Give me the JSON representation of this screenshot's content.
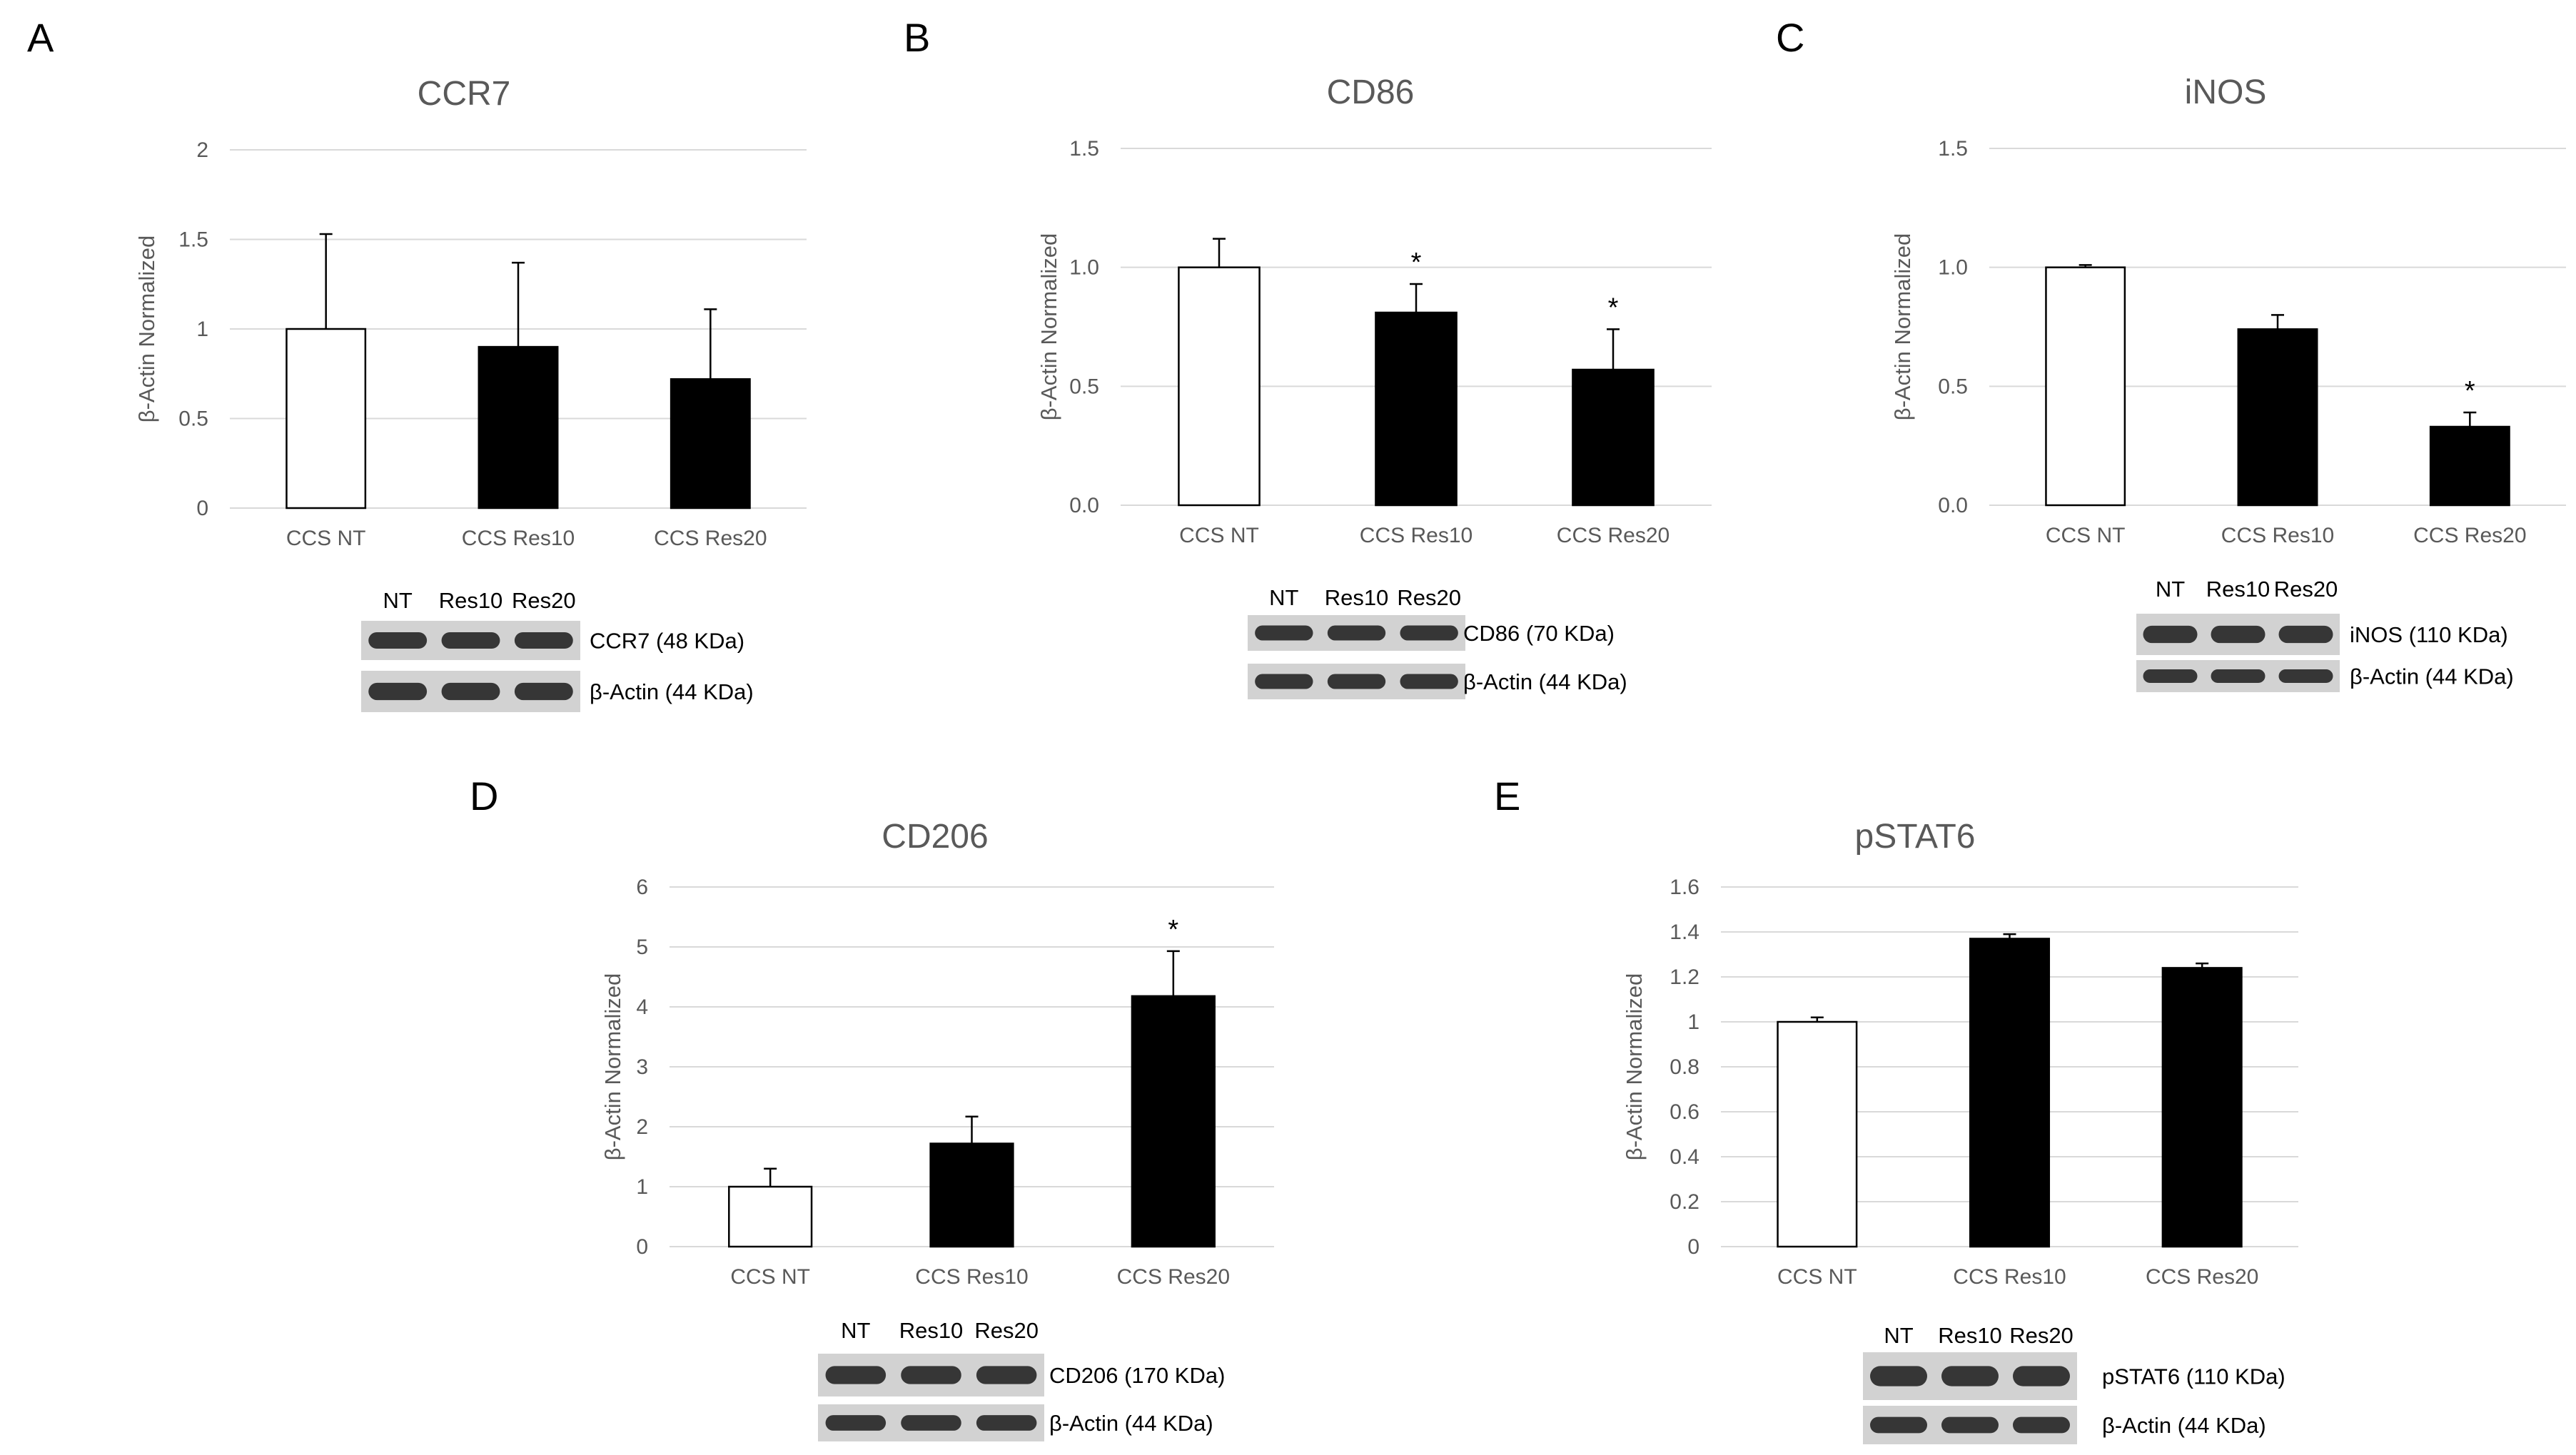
{
  "figure": {
    "panels": [
      "A",
      "B",
      "C",
      "D",
      "E"
    ]
  },
  "colors": {
    "open_bar": "#ffffff",
    "filled_bar": "#000000",
    "grid": "#d9d9d9",
    "text": "#595959"
  },
  "chart_data": [
    {
      "panel": "A",
      "type": "bar",
      "title": "CCR7",
      "ylabel": "β-Actin Normalized",
      "xlabel": "",
      "categories": [
        "CCS NT",
        "CCS Res10",
        "CCS Res20"
      ],
      "values": [
        1.0,
        0.9,
        0.72
      ],
      "errors": [
        0.53,
        0.47,
        0.39
      ],
      "significant": [
        false,
        false,
        false
      ],
      "ylim": [
        0,
        2
      ],
      "yticks": [
        "0",
        "0.5",
        "1",
        "1.5",
        "2"
      ],
      "grid": true,
      "blot": {
        "lanes": [
          "NT",
          "Res10",
          "Res20"
        ],
        "labels": [
          "CCR7 (48 KDa)",
          "β-Actin (44 KDa)"
        ]
      }
    },
    {
      "panel": "B",
      "type": "bar",
      "title": "CD86",
      "ylabel": "β-Actin Normalized",
      "xlabel": "",
      "categories": [
        "CCS NT",
        "CCS Res10",
        "CCS Res20"
      ],
      "values": [
        1.0,
        0.81,
        0.57
      ],
      "errors": [
        0.12,
        0.12,
        0.17
      ],
      "significant": [
        false,
        true,
        true
      ],
      "ylim": [
        0,
        1.5
      ],
      "yticks": [
        "0.0",
        "0.5",
        "1.0",
        "1.5"
      ],
      "grid": true,
      "blot": {
        "lanes": [
          "NT",
          "Res10",
          "Res20"
        ],
        "labels": [
          "CD86 (70 KDa)",
          "β-Actin (44 KDa)"
        ]
      }
    },
    {
      "panel": "C",
      "type": "bar",
      "title": "iNOS",
      "ylabel": "β-Actin Normalized",
      "xlabel": "",
      "categories": [
        "CCS NT",
        "CCS Res10",
        "CCS Res20"
      ],
      "values": [
        1.0,
        0.74,
        0.33
      ],
      "errors": [
        0.01,
        0.06,
        0.06
      ],
      "significant": [
        false,
        false,
        true
      ],
      "ylim": [
        0,
        1.5
      ],
      "yticks": [
        "0.0",
        "0.5",
        "1.0",
        "1.5"
      ],
      "grid": true,
      "blot": {
        "lanes": [
          "NT",
          "Res10",
          "Res20"
        ],
        "labels": [
          "iNOS (110 KDa)",
          "β-Actin (44 KDa)"
        ]
      }
    },
    {
      "panel": "D",
      "type": "bar",
      "title": "CD206",
      "ylabel": "β-Actin Normalized",
      "xlabel": "",
      "categories": [
        "CCS NT",
        "CCS Res10",
        "CCS Res20"
      ],
      "values": [
        1.0,
        1.72,
        4.18
      ],
      "errors": [
        0.3,
        0.45,
        0.75
      ],
      "significant": [
        false,
        false,
        true
      ],
      "ylim": [
        0,
        6
      ],
      "yticks": [
        "0",
        "1",
        "2",
        "3",
        "4",
        "5",
        "6"
      ],
      "grid": true,
      "blot": {
        "lanes": [
          "NT",
          "Res10",
          "Res20"
        ],
        "labels": [
          "CD206 (170 KDa)",
          "β-Actin (44 KDa)"
        ]
      }
    },
    {
      "panel": "E",
      "type": "bar",
      "title": "pSTAT6",
      "ylabel": "β-Actin Normalized",
      "xlabel": "",
      "categories": [
        "CCS NT",
        "CCS Res10",
        "CCS Res20"
      ],
      "values": [
        1.0,
        1.37,
        1.24
      ],
      "errors": [
        0.02,
        0.02,
        0.02
      ],
      "significant": [
        false,
        false,
        false
      ],
      "ylim": [
        0,
        1.6
      ],
      "yticks": [
        "0",
        "0.2",
        "0.4",
        "0.6",
        "0.8",
        "1",
        "1.2",
        "1.4",
        "1.6"
      ],
      "grid": true,
      "blot": {
        "lanes": [
          "NT",
          "Res10",
          "Res20"
        ],
        "labels": [
          "pSTAT6 (110 KDa)",
          "β-Actin (44 KDa)"
        ]
      }
    }
  ]
}
